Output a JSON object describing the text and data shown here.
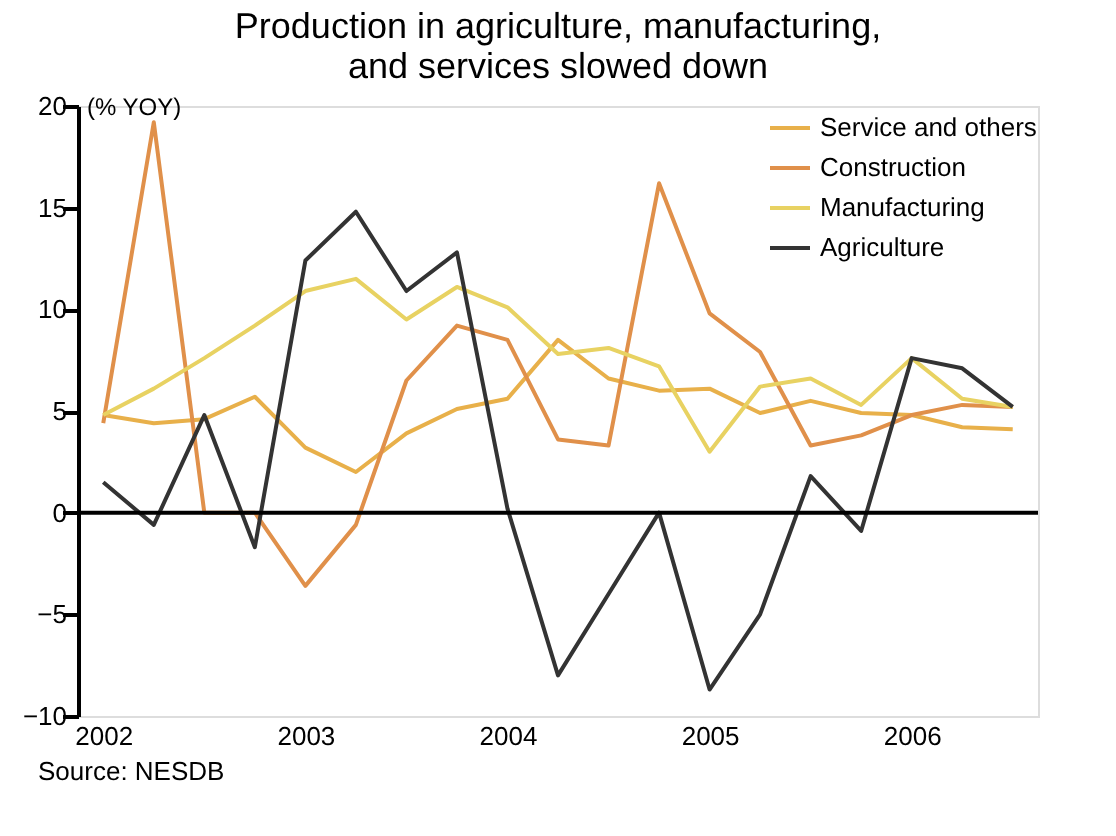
{
  "chart_data": {
    "type": "line",
    "title": "Production in agriculture, manufacturing,\nand services slowed down",
    "ylabel": "(% YOY)",
    "x": [
      2002,
      2002.25,
      2002.5,
      2002.75,
      2003,
      2003.25,
      2003.5,
      2003.75,
      2004,
      2004.25,
      2004.5,
      2004.75,
      2005,
      2005.25,
      2005.5,
      2005.75,
      2006,
      2006.25,
      2006.5
    ],
    "series": [
      {
        "name": "Service and others",
        "color": "#e8b04a",
        "values": [
          4.8,
          4.4,
          4.6,
          5.7,
          3.2,
          2.0,
          3.9,
          5.1,
          5.6,
          8.5,
          6.6,
          6.0,
          6.1,
          4.9,
          5.5,
          4.9,
          4.8,
          4.2,
          4.1
        ]
      },
      {
        "name": "Construction",
        "color": "#e0904a",
        "values": [
          4.4,
          19.2,
          0,
          0,
          -3.6,
          -0.6,
          6.5,
          9.2,
          8.5,
          3.6,
          3.3,
          16.2,
          9.8,
          7.9,
          3.3,
          3.8,
          4.8,
          5.3,
          5.2
        ]
      },
      {
        "name": "Manufacturing",
        "color": "#e8d262",
        "values": [
          4.8,
          6.1,
          7.6,
          9.2,
          10.9,
          11.5,
          9.5,
          11.1,
          10.1,
          7.8,
          8.1,
          7.2,
          3.0,
          6.2,
          6.6,
          5.3,
          7.6,
          5.6,
          5.2
        ]
      },
      {
        "name": "Agriculture",
        "color": "#333333",
        "values": [
          1.5,
          -0.6,
          4.8,
          -1.7,
          12.4,
          14.8,
          10.9,
          12.8,
          0.2,
          -8.0,
          -4.0,
          0,
          -8.7,
          -5.0,
          1.8,
          -0.9,
          7.6,
          7.1,
          5.2
        ]
      }
    ],
    "xlim": [
      2001.875,
      2006.625
    ],
    "xticks": [
      2002,
      2003,
      2004,
      2005,
      2006
    ],
    "ylim": [
      -10,
      20
    ],
    "yticks": [
      -10,
      -5,
      0,
      5,
      10,
      15,
      20
    ],
    "ref_lines": [
      {
        "axis": "y",
        "value": 0,
        "color": "#000000"
      }
    ],
    "annotations": [
      "Source: NESDB"
    ],
    "legend": "top right",
    "grid": false,
    "marker": "none",
    "line_style": "solid"
  }
}
